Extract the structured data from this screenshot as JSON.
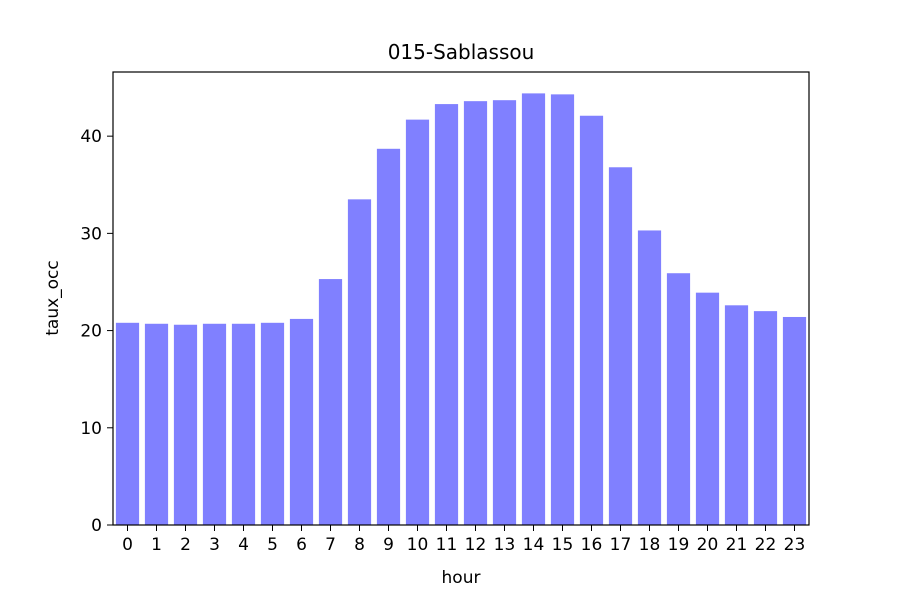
{
  "chart_data": {
    "type": "bar",
    "title": "015-Sablassou",
    "xlabel": "hour",
    "ylabel": "taux_occ",
    "categories": [
      "0",
      "1",
      "2",
      "3",
      "4",
      "5",
      "6",
      "7",
      "8",
      "9",
      "10",
      "11",
      "12",
      "13",
      "14",
      "15",
      "16",
      "17",
      "18",
      "19",
      "20",
      "21",
      "22",
      "23"
    ],
    "values": [
      20.8,
      20.7,
      20.6,
      20.7,
      20.7,
      20.8,
      21.2,
      25.3,
      33.5,
      38.7,
      41.7,
      43.3,
      43.6,
      43.7,
      44.4,
      44.3,
      42.1,
      36.8,
      30.3,
      25.9,
      23.9,
      22.6,
      22.0,
      21.4
    ],
    "yticks": [
      0,
      10,
      20,
      30,
      40
    ],
    "ylim": [
      0,
      46.6
    ],
    "grid": false,
    "bar_color": "#8080ff"
  }
}
